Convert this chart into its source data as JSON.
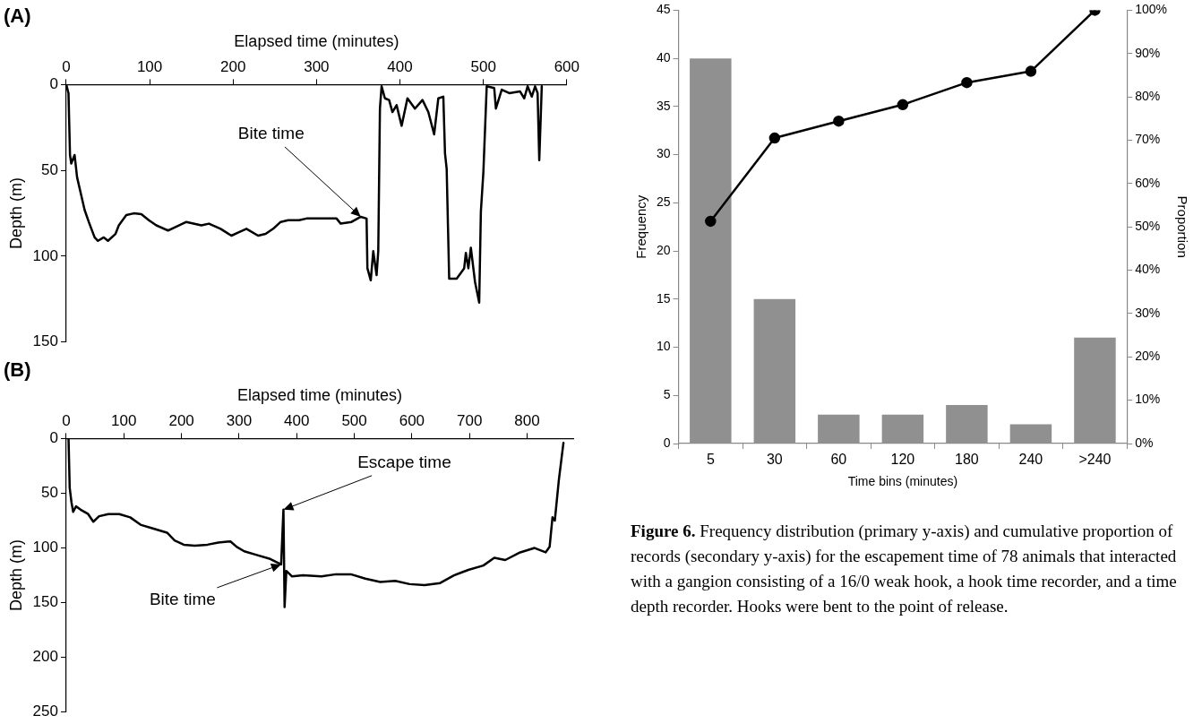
{
  "chart_data": [
    {
      "type": "line",
      "title": "(A)",
      "xlabel": "Elapsed time (minutes)",
      "ylabel": "Depth (m)",
      "xlim": [
        0,
        600
      ],
      "xticks": [
        0,
        100,
        200,
        300,
        400,
        500,
        600
      ],
      "ylim": [
        150,
        0
      ],
      "yticks": [
        0,
        50,
        100,
        150
      ],
      "grid": false,
      "legend": false,
      "marker": "none",
      "line_style": "solid",
      "series": [
        {
          "color": "#000000",
          "x": [
            0,
            2.7,
            4.5,
            6,
            10,
            13,
            22,
            27,
            34,
            38,
            45,
            50,
            59,
            63,
            72,
            81,
            90,
            99,
            108,
            122,
            131,
            144,
            162,
            171,
            185,
            198,
            207,
            216,
            230,
            239,
            248,
            257,
            266,
            279,
            288,
            306,
            324,
            329,
            342,
            353,
            360,
            361,
            365,
            368,
            372,
            374,
            376,
            378,
            382,
            387,
            391,
            396,
            402,
            409,
            418,
            427,
            434,
            441,
            446,
            452,
            454,
            456,
            459,
            468,
            477,
            479,
            482,
            485,
            490,
            495,
            497,
            500,
            504,
            513,
            515,
            522,
            531,
            544,
            549,
            553,
            558,
            562,
            565,
            567,
            570
          ],
          "values": [
            0,
            5,
            41,
            46,
            41,
            54,
            73,
            80,
            89,
            91,
            89,
            91,
            87,
            82,
            76,
            75,
            75.5,
            79,
            82,
            85,
            83,
            80,
            82,
            81,
            84,
            88,
            86,
            84,
            88,
            87,
            84,
            80,
            79,
            79,
            78,
            78,
            78,
            81,
            80,
            77,
            78,
            107,
            114,
            97,
            111,
            97,
            14,
            1,
            8,
            9,
            16,
            12,
            24,
            8,
            14,
            9,
            16,
            29,
            8,
            7,
            40,
            49,
            113,
            113,
            107,
            98,
            107,
            95,
            115,
            127,
            74,
            51,
            1,
            2,
            14,
            3,
            5,
            4,
            8,
            1,
            7,
            1,
            5,
            44,
            1
          ]
        }
      ],
      "annotations": [
        {
          "text": "Bite time",
          "x": 353,
          "y": 77
        }
      ]
    },
    {
      "type": "line",
      "title": "(B)",
      "xlabel": "Elapsed time (minutes)",
      "ylabel": "Depth (m)",
      "xlim": [
        0,
        880
      ],
      "xticks": [
        0,
        100,
        200,
        300,
        400,
        500,
        600,
        700,
        800
      ],
      "ylim": [
        250,
        0
      ],
      "yticks": [
        0,
        50,
        100,
        150,
        200,
        250
      ],
      "grid": false,
      "legend": false,
      "marker": "none",
      "line_style": "solid",
      "series": [
        {
          "color": "#000000",
          "x": [
            4,
            6,
            9,
            12,
            17,
            25,
            38,
            47,
            57,
            73,
            92,
            111,
            130,
            149,
            175,
            188,
            204,
            223,
            245,
            264,
            285,
            296,
            309,
            328,
            354,
            373,
            377,
            379,
            382,
            392,
            411,
            443,
            468,
            494,
            519,
            545,
            571,
            596,
            622,
            649,
            673,
            698,
            724,
            743,
            762,
            788,
            813,
            832,
            839,
            844,
            848,
            855,
            863
          ],
          "values": [
            0,
            45,
            58,
            67,
            62,
            65,
            69,
            76,
            71,
            69,
            69,
            72,
            79,
            82,
            86,
            93,
            97,
            98,
            97,
            95,
            94,
            99,
            103,
            106,
            110,
            115,
            65,
            154,
            121,
            126,
            125,
            126,
            124,
            124,
            128,
            131,
            130,
            133,
            134,
            132,
            125,
            120,
            116,
            109,
            111,
            104,
            100,
            104,
            99,
            72,
            75,
            38,
            4
          ]
        }
      ],
      "annotations": [
        {
          "text": "Bite time",
          "x": 373,
          "y": 115
        },
        {
          "text": "Escape time",
          "x": 377,
          "y": 65
        }
      ]
    },
    {
      "type": "bar",
      "xlabel": "Time bins (minutes)",
      "ylabel": "Frequency",
      "y2label": "Proportion",
      "categories": [
        "5",
        "30",
        "60",
        "120",
        "180",
        "240",
        ">240"
      ],
      "ylim": [
        0,
        45
      ],
      "yticks": [
        0,
        5,
        10,
        15,
        20,
        25,
        30,
        35,
        40,
        45
      ],
      "y2lim": [
        0,
        100
      ],
      "y2ticks": [
        {
          "value": 0,
          "label": "0%"
        },
        {
          "value": 10,
          "label": "10%"
        },
        {
          "value": 20,
          "label": "20%"
        },
        {
          "value": 30,
          "label": "30%"
        },
        {
          "value": 40,
          "label": "40%"
        },
        {
          "value": 50,
          "label": "50%"
        },
        {
          "value": 60,
          "label": "60%"
        },
        {
          "value": 70,
          "label": "70%"
        },
        {
          "value": 80,
          "label": "80%"
        },
        {
          "value": 90,
          "label": "90%"
        },
        {
          "value": 100,
          "label": "100%"
        }
      ],
      "grid": false,
      "legend": false,
      "marker": "circle",
      "line_style": "solid",
      "series": [
        {
          "type": "bar",
          "color": "#909090",
          "values": [
            40,
            15,
            3,
            3,
            4,
            2,
            11
          ]
        },
        {
          "type": "line",
          "axis": "y2",
          "color": "#000000",
          "values": [
            51.3,
            70.5,
            74.4,
            78.2,
            83.3,
            85.9,
            100
          ]
        }
      ],
      "annotations": [
        "Figure 6. Frequency distribution (primary y-axis) and cumulative proportion of records (secondary y-axis) for the escapement time of 78 animals that interacted with a gangion consisting of a 16/0 weak hook, a hook time recorder, and a time depth recorder. Hooks were bent to the point of release."
      ]
    }
  ]
}
